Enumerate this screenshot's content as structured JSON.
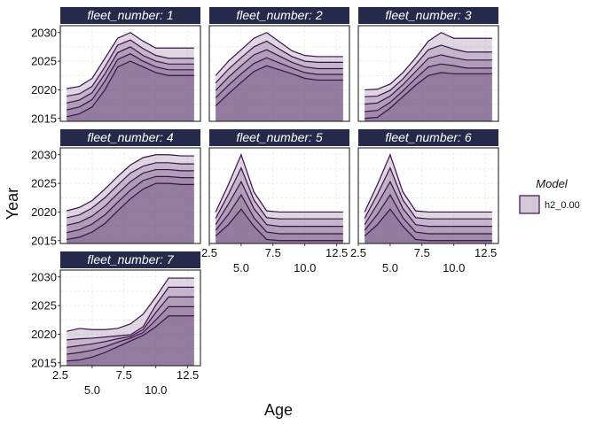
{
  "chart_data": {
    "type": "area",
    "xlabel": "Age",
    "ylabel": "Year",
    "xlim": [
      2.5,
      13.5
    ],
    "ylim": [
      2014.5,
      2031.2
    ],
    "x_ticks": [
      2.5,
      5.0,
      7.5,
      10.0,
      12.5
    ],
    "x_tick_labels": [
      "2.5",
      "5.0",
      "7.5",
      "10.0",
      "12.5"
    ],
    "y_ticks": [
      2015,
      2020,
      2025,
      2030
    ],
    "y_tick_labels": [
      "2015",
      "2020",
      "2025",
      "2030"
    ],
    "grid": true,
    "fill_color": "#6b4a7a",
    "line_color": "#3b0f4a",
    "strip_color": "#262a4a",
    "legend": {
      "title": "Model",
      "entries": [
        "h2_0.00"
      ],
      "position": "right"
    },
    "x": [
      3,
      4,
      5,
      6,
      7,
      8,
      9,
      10,
      11,
      12,
      13
    ],
    "panels": [
      {
        "strip": "fleet_number: 1",
        "series": [
          [
            2015.3,
            2015.8,
            2017.0,
            2020.0,
            2024.0,
            2025.0,
            2024.0,
            2023.0,
            2022.5,
            2022.5,
            2022.5
          ],
          [
            2016.5,
            2017.0,
            2018.3,
            2021.5,
            2025.3,
            2026.3,
            2025.0,
            2024.0,
            2023.5,
            2023.5,
            2023.5
          ],
          [
            2017.7,
            2018.2,
            2019.5,
            2022.8,
            2026.5,
            2027.5,
            2026.0,
            2025.0,
            2024.5,
            2024.5,
            2024.5
          ],
          [
            2018.9,
            2019.3,
            2020.6,
            2024.0,
            2027.8,
            2028.7,
            2027.2,
            2026.0,
            2025.5,
            2025.5,
            2025.5
          ],
          [
            2020.2,
            2020.6,
            2022.0,
            2025.5,
            2029.0,
            2030.0,
            2028.5,
            2027.3,
            2027.3,
            2027.3,
            2027.3
          ]
        ]
      },
      {
        "strip": "fleet_number: 2",
        "series": [
          [
            2017.2,
            2019.3,
            2021.3,
            2023.2,
            2024.2,
            2023.5,
            2022.8,
            2022.0,
            2021.7,
            2021.7,
            2021.7
          ],
          [
            2018.6,
            2020.8,
            2022.8,
            2024.6,
            2025.6,
            2024.7,
            2023.8,
            2023.0,
            2022.7,
            2022.7,
            2022.7
          ],
          [
            2019.9,
            2022.2,
            2024.2,
            2026.1,
            2027.0,
            2025.9,
            2024.8,
            2024.0,
            2023.7,
            2023.7,
            2023.7
          ],
          [
            2021.2,
            2023.6,
            2025.6,
            2027.5,
            2028.5,
            2027.1,
            2025.8,
            2025.0,
            2024.8,
            2024.8,
            2024.8
          ],
          [
            2022.5,
            2025.0,
            2027.0,
            2029.0,
            2030.0,
            2028.4,
            2026.8,
            2026.0,
            2025.8,
            2025.8,
            2025.8
          ]
        ]
      },
      {
        "strip": "fleet_number: 3",
        "series": [
          [
            2015.0,
            2015.2,
            2016.8,
            2018.8,
            2020.8,
            2022.5,
            2023.0,
            2022.8,
            2022.8,
            2022.8,
            2022.8
          ],
          [
            2016.2,
            2016.4,
            2017.8,
            2019.8,
            2022.0,
            2024.0,
            2024.5,
            2024.2,
            2023.8,
            2023.8,
            2023.8
          ],
          [
            2017.5,
            2017.7,
            2018.9,
            2020.9,
            2023.2,
            2025.5,
            2026.1,
            2025.6,
            2025.2,
            2025.2,
            2025.2
          ],
          [
            2018.8,
            2018.9,
            2019.9,
            2021.9,
            2024.4,
            2027.0,
            2027.8,
            2027.1,
            2026.6,
            2026.6,
            2026.6
          ],
          [
            2020.0,
            2020.1,
            2021.0,
            2023.0,
            2025.6,
            2028.5,
            2030.0,
            2029.0,
            2029.0,
            2029.0,
            2029.0
          ]
        ]
      },
      {
        "strip": "fleet_number: 4",
        "series": [
          [
            2015.2,
            2015.6,
            2016.5,
            2018.0,
            2020.2,
            2022.3,
            2024.0,
            2025.0,
            2025.0,
            2024.8,
            2024.8
          ],
          [
            2016.4,
            2016.9,
            2017.9,
            2019.5,
            2021.7,
            2023.8,
            2025.5,
            2026.2,
            2026.2,
            2026.0,
            2026.0
          ],
          [
            2017.7,
            2018.2,
            2019.3,
            2021.0,
            2023.2,
            2025.3,
            2026.8,
            2027.4,
            2027.4,
            2027.2,
            2027.2
          ],
          [
            2019.0,
            2019.5,
            2020.7,
            2022.5,
            2024.7,
            2026.8,
            2028.0,
            2028.6,
            2028.6,
            2028.4,
            2028.4
          ],
          [
            2020.2,
            2020.8,
            2022.0,
            2024.0,
            2026.2,
            2028.2,
            2029.5,
            2030.0,
            2030.0,
            2029.8,
            2029.8
          ]
        ]
      },
      {
        "strip": "fleet_number: 5",
        "series": [
          [
            2015.8,
            2017.8,
            2020.5,
            2017.5,
            2015.2,
            2015.0,
            2015.0,
            2015.0,
            2015.0,
            2015.0,
            2015.0
          ],
          [
            2016.8,
            2019.6,
            2023.0,
            2019.0,
            2016.5,
            2016.2,
            2016.2,
            2016.2,
            2016.2,
            2016.2,
            2016.2
          ],
          [
            2017.8,
            2021.4,
            2025.3,
            2020.6,
            2017.8,
            2017.5,
            2017.5,
            2017.5,
            2017.5,
            2017.5,
            2017.5
          ],
          [
            2018.9,
            2023.1,
            2027.7,
            2022.1,
            2019.0,
            2018.8,
            2018.8,
            2018.8,
            2018.8,
            2018.8,
            2018.8
          ],
          [
            2020.0,
            2024.8,
            2030.0,
            2023.5,
            2020.2,
            2020.0,
            2020.0,
            2020.0,
            2020.0,
            2020.0,
            2020.0
          ]
        ]
      },
      {
        "strip": "fleet_number: 6",
        "series": [
          [
            2015.8,
            2017.8,
            2020.5,
            2017.5,
            2015.2,
            2015.0,
            2015.0,
            2015.0,
            2015.0,
            2015.0,
            2015.0
          ],
          [
            2016.8,
            2019.6,
            2023.0,
            2019.0,
            2016.5,
            2016.2,
            2016.2,
            2016.2,
            2016.2,
            2016.2,
            2016.2
          ],
          [
            2017.8,
            2021.4,
            2025.3,
            2020.6,
            2017.8,
            2017.5,
            2017.5,
            2017.5,
            2017.5,
            2017.5,
            2017.5
          ],
          [
            2018.9,
            2023.1,
            2027.7,
            2022.1,
            2019.0,
            2018.8,
            2018.8,
            2018.8,
            2018.8,
            2018.8,
            2018.8
          ],
          [
            2020.0,
            2024.8,
            2030.0,
            2023.5,
            2020.2,
            2020.0,
            2020.0,
            2020.0,
            2020.0,
            2020.0,
            2020.0
          ]
        ]
      },
      {
        "strip": "fleet_number: 7",
        "series": [
          [
            2015.3,
            2015.5,
            2016.0,
            2016.8,
            2017.8,
            2018.8,
            2019.8,
            2021.3,
            2023.2,
            2023.2,
            2023.2
          ],
          [
            2016.5,
            2016.8,
            2017.2,
            2017.8,
            2018.6,
            2019.3,
            2020.3,
            2022.5,
            2024.8,
            2024.8,
            2024.8
          ],
          [
            2017.7,
            2018.0,
            2018.3,
            2018.7,
            2019.2,
            2019.6,
            2020.8,
            2023.8,
            2026.5,
            2026.5,
            2026.5
          ],
          [
            2019.0,
            2019.2,
            2019.3,
            2019.5,
            2019.7,
            2019.9,
            2021.3,
            2025.1,
            2028.2,
            2028.2,
            2028.2
          ],
          [
            2020.5,
            2021.0,
            2020.8,
            2020.8,
            2021.0,
            2021.8,
            2023.5,
            2026.5,
            2029.8,
            2029.8,
            2029.8
          ]
        ]
      }
    ]
  }
}
